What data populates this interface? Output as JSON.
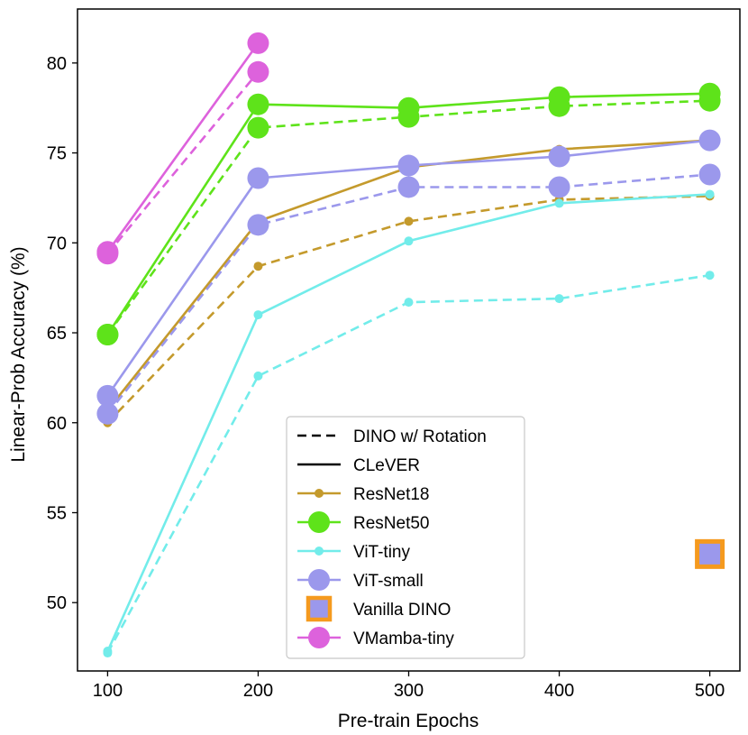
{
  "chart_data": {
    "type": "line",
    "title": "",
    "xlabel": "Pre-train Epochs",
    "ylabel": "Linear-Prob Accuracy (%)",
    "x": [
      100,
      200,
      300,
      400,
      500
    ],
    "xlim": [
      80,
      520
    ],
    "ylim": [
      46.2,
      83.0
    ],
    "xticks": [
      100,
      200,
      300,
      400,
      500
    ],
    "yticks": [
      50,
      55,
      60,
      65,
      70,
      75,
      80
    ],
    "grid": false,
    "legend_position": "lower-center",
    "legend_styles": [
      {
        "label": "DINO w/ Rotation",
        "dash": true
      },
      {
        "label": "CLeVER",
        "dash": false
      }
    ],
    "models": [
      {
        "name": "ResNet18",
        "color": "#c49a2c",
        "marker": "small",
        "series": [
          {
            "method": "CLeVER",
            "dash": false,
            "x": [
              100,
              200,
              300,
              400,
              500
            ],
            "y": [
              60.7,
              71.2,
              74.2,
              75.2,
              75.7
            ]
          },
          {
            "method": "DINO w/ Rotation",
            "dash": true,
            "x": [
              100,
              200,
              300,
              400,
              500
            ],
            "y": [
              60.0,
              68.7,
              71.2,
              72.4,
              72.6
            ]
          }
        ]
      },
      {
        "name": "ResNet50",
        "color": "#5ee31a",
        "marker": "large",
        "series": [
          {
            "method": "CLeVER",
            "dash": false,
            "x": [
              100,
              200,
              300,
              400,
              500
            ],
            "y": [
              64.9,
              77.7,
              77.5,
              78.1,
              78.3
            ]
          },
          {
            "method": "DINO w/ Rotation",
            "dash": true,
            "x": [
              100,
              200,
              300,
              400,
              500
            ],
            "y": [
              64.9,
              76.4,
              77.0,
              77.6,
              77.9
            ]
          }
        ]
      },
      {
        "name": "ViT-tiny",
        "color": "#72ecea",
        "marker": "small",
        "series": [
          {
            "method": "CLeVER",
            "dash": false,
            "x": [
              100,
              200,
              300,
              400,
              500
            ],
            "y": [
              47.3,
              66.0,
              70.1,
              72.2,
              72.7
            ]
          },
          {
            "method": "DINO w/ Rotation",
            "dash": true,
            "x": [
              100,
              200,
              300,
              400,
              500
            ],
            "y": [
              47.2,
              62.6,
              66.7,
              66.9,
              68.2
            ]
          }
        ]
      },
      {
        "name": "ViT-small",
        "color": "#9b98ec",
        "marker": "large",
        "series": [
          {
            "method": "CLeVER",
            "dash": false,
            "x": [
              100,
              200,
              300,
              400,
              500
            ],
            "y": [
              61.5,
              73.6,
              74.3,
              74.8,
              75.7
            ]
          },
          {
            "method": "DINO w/ Rotation",
            "dash": true,
            "x": [
              100,
              200,
              300,
              400,
              500
            ],
            "y": [
              60.5,
              71.0,
              73.1,
              73.1,
              73.8
            ]
          }
        ]
      },
      {
        "name": "VMamba-tiny",
        "color": "#dd62dc",
        "marker": "large",
        "series": [
          {
            "method": "CLeVER",
            "dash": false,
            "x": [
              100,
              200
            ],
            "y": [
              69.5,
              81.1
            ]
          },
          {
            "method": "DINO w/ Rotation",
            "dash": true,
            "x": [
              100,
              200
            ],
            "y": [
              69.4,
              79.5
            ]
          }
        ]
      }
    ],
    "vanilla_dino": {
      "name": "Vanilla DINO",
      "x": 500,
      "y": 52.7,
      "fill": "#9b98ec",
      "edge": "#f59a1e"
    },
    "legend_order": [
      "ResNet18",
      "ResNet50",
      "ViT-tiny",
      "ViT-small",
      "Vanilla DINO",
      "VMamba-tiny"
    ]
  }
}
